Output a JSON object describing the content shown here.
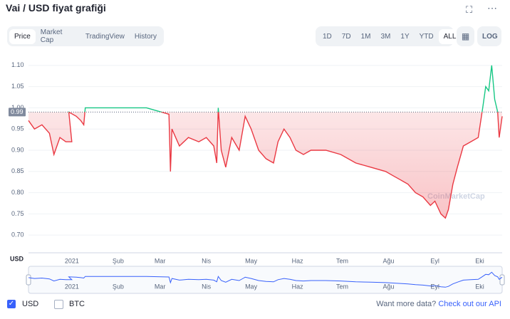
{
  "header": {
    "title": "Vai / USD fiyat grafiği"
  },
  "tabs": [
    "Price",
    "Market Cap",
    "TradingView",
    "History"
  ],
  "ranges": [
    "1D",
    "7D",
    "1M",
    "3M",
    "1Y",
    "YTD",
    "ALL"
  ],
  "log_button": "LOG",
  "chart_data": {
    "type": "line",
    "y_axis_label": "USD",
    "baseline": 0.99,
    "watermark": "CoinMarketCap",
    "colors": {
      "above": "#16c784",
      "below": "#ea3943"
    },
    "x": [
      -29,
      -25,
      -20,
      -15,
      -12,
      -8,
      -4,
      0,
      -2,
      3,
      6,
      8,
      9,
      20,
      35,
      50,
      55,
      60,
      65,
      66,
      67,
      72,
      78,
      85,
      90,
      95,
      97,
      98,
      100,
      103,
      107,
      112,
      115,
      116,
      120,
      125,
      130,
      135,
      138,
      142,
      146,
      150,
      155,
      160,
      170,
      180,
      190,
      200,
      210,
      215,
      220,
      225,
      230,
      235,
      240,
      243,
      247,
      250,
      252,
      255,
      258,
      262,
      267,
      272,
      275,
      277,
      279,
      281,
      283,
      285,
      286,
      288
    ],
    "series": [
      {
        "name": "USD",
        "values": [
          0.97,
          0.95,
          0.96,
          0.94,
          0.89,
          0.93,
          0.92,
          0.92,
          0.99,
          0.98,
          0.97,
          0.96,
          1.0,
          1.0,
          1.0,
          1.0,
          0.995,
          0.99,
          0.985,
          0.85,
          0.95,
          0.91,
          0.93,
          0.92,
          0.93,
          0.91,
          0.87,
          1.0,
          0.9,
          0.86,
          0.93,
          0.9,
          0.96,
          0.98,
          0.95,
          0.9,
          0.88,
          0.87,
          0.92,
          0.95,
          0.93,
          0.9,
          0.89,
          0.9,
          0.9,
          0.89,
          0.87,
          0.86,
          0.85,
          0.84,
          0.83,
          0.82,
          0.8,
          0.79,
          0.77,
          0.78,
          0.75,
          0.74,
          0.76,
          0.82,
          0.86,
          0.91,
          0.92,
          0.93,
          1.0,
          1.05,
          1.04,
          1.1,
          1.02,
          0.99,
          0.93,
          0.98
        ]
      }
    ],
    "xlim": [
      -29,
      288
    ],
    "xticks": [
      {
        "value": 0,
        "label": "2021"
      },
      {
        "value": 31,
        "label": "Şub"
      },
      {
        "value": 59,
        "label": "Mar"
      },
      {
        "value": 90,
        "label": "Nis"
      },
      {
        "value": 120,
        "label": "May"
      },
      {
        "value": 151,
        "label": "Haz"
      },
      {
        "value": 181,
        "label": "Tem"
      },
      {
        "value": 212,
        "label": "Ağu"
      },
      {
        "value": 243,
        "label": "Eyl"
      },
      {
        "value": 273,
        "label": "Eki"
      }
    ],
    "ylim": [
      0.66,
      1.14
    ],
    "yticks": [
      {
        "value": 0.7,
        "label": "0.70"
      },
      0.75,
      {
        "value": 0.8,
        "label": "0.80"
      },
      0.85,
      {
        "value": 0.9,
        "label": "0.90"
      },
      0.95,
      {
        "value": 1.0,
        "label": "1.00"
      },
      1.05,
      {
        "value": 1.1,
        "label": "1.10"
      }
    ],
    "grid": true
  },
  "legend_options": [
    "BTC"
  ],
  "footer": {
    "prompt": "Want more data?",
    "link": "Check out our API"
  }
}
